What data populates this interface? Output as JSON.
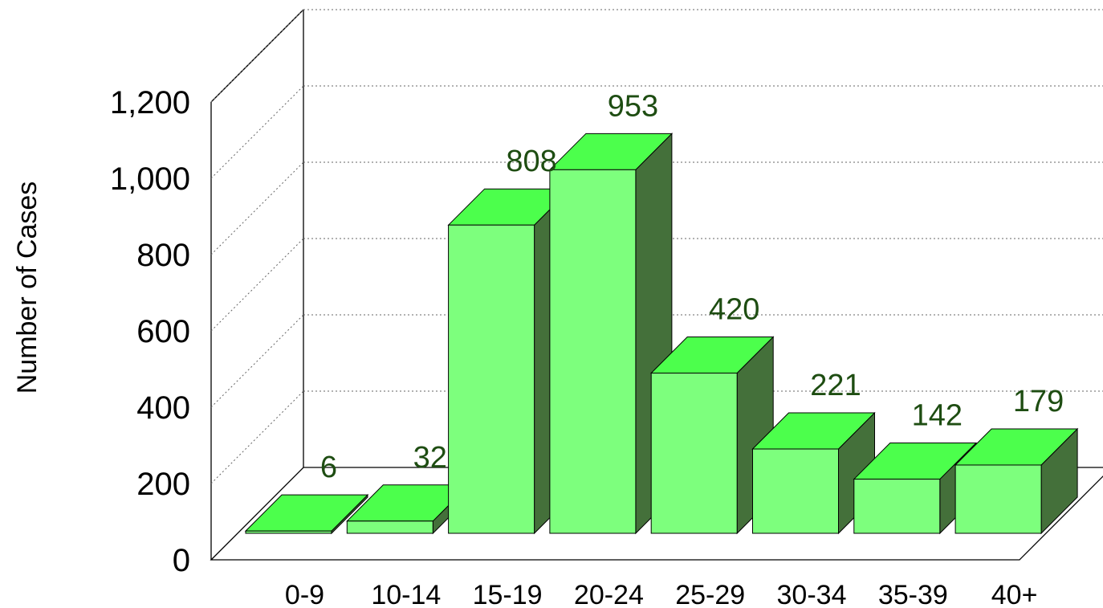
{
  "chart_data": {
    "type": "bar",
    "style": "3d",
    "categories": [
      "0-9",
      "10-14",
      "15-19",
      "20-24",
      "25-29",
      "30-34",
      "35-39",
      "40+"
    ],
    "values": [
      6,
      32,
      808,
      953,
      420,
      221,
      142,
      179
    ],
    "data_labels": [
      "6",
      "32",
      "808",
      "953",
      "420",
      "221",
      "142",
      "179"
    ],
    "ylabel": "Number of Cases",
    "ylim": [
      0,
      1200
    ],
    "yticks": [
      0,
      200,
      400,
      600,
      800,
      1000,
      1200
    ],
    "ytick_labels": [
      "0",
      "200",
      "400",
      "600",
      "800",
      "1,000",
      "1,200"
    ],
    "grid": "horizontal dotted on back wall",
    "legend": "none",
    "colors": {
      "bar_front": "#7dff7d",
      "bar_top": "#4cff4c",
      "bar_side": "#44703a",
      "label_text": "#1e4d12",
      "axis_line": "#000000",
      "grid_line": "#666666"
    }
  }
}
